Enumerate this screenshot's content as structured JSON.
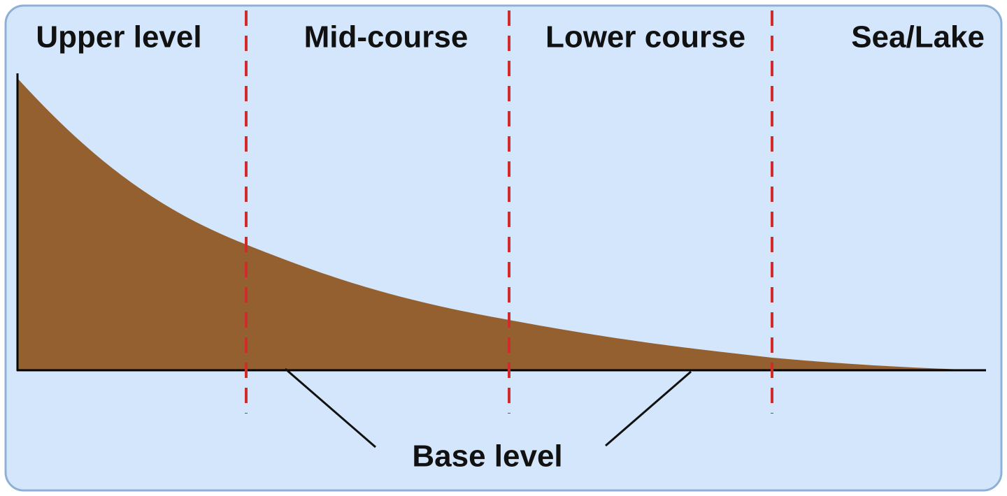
{
  "stages": [
    "Upper level",
    "Mid-course",
    "Lower course",
    "Sea/Lake"
  ],
  "base_label": "Base level"
}
